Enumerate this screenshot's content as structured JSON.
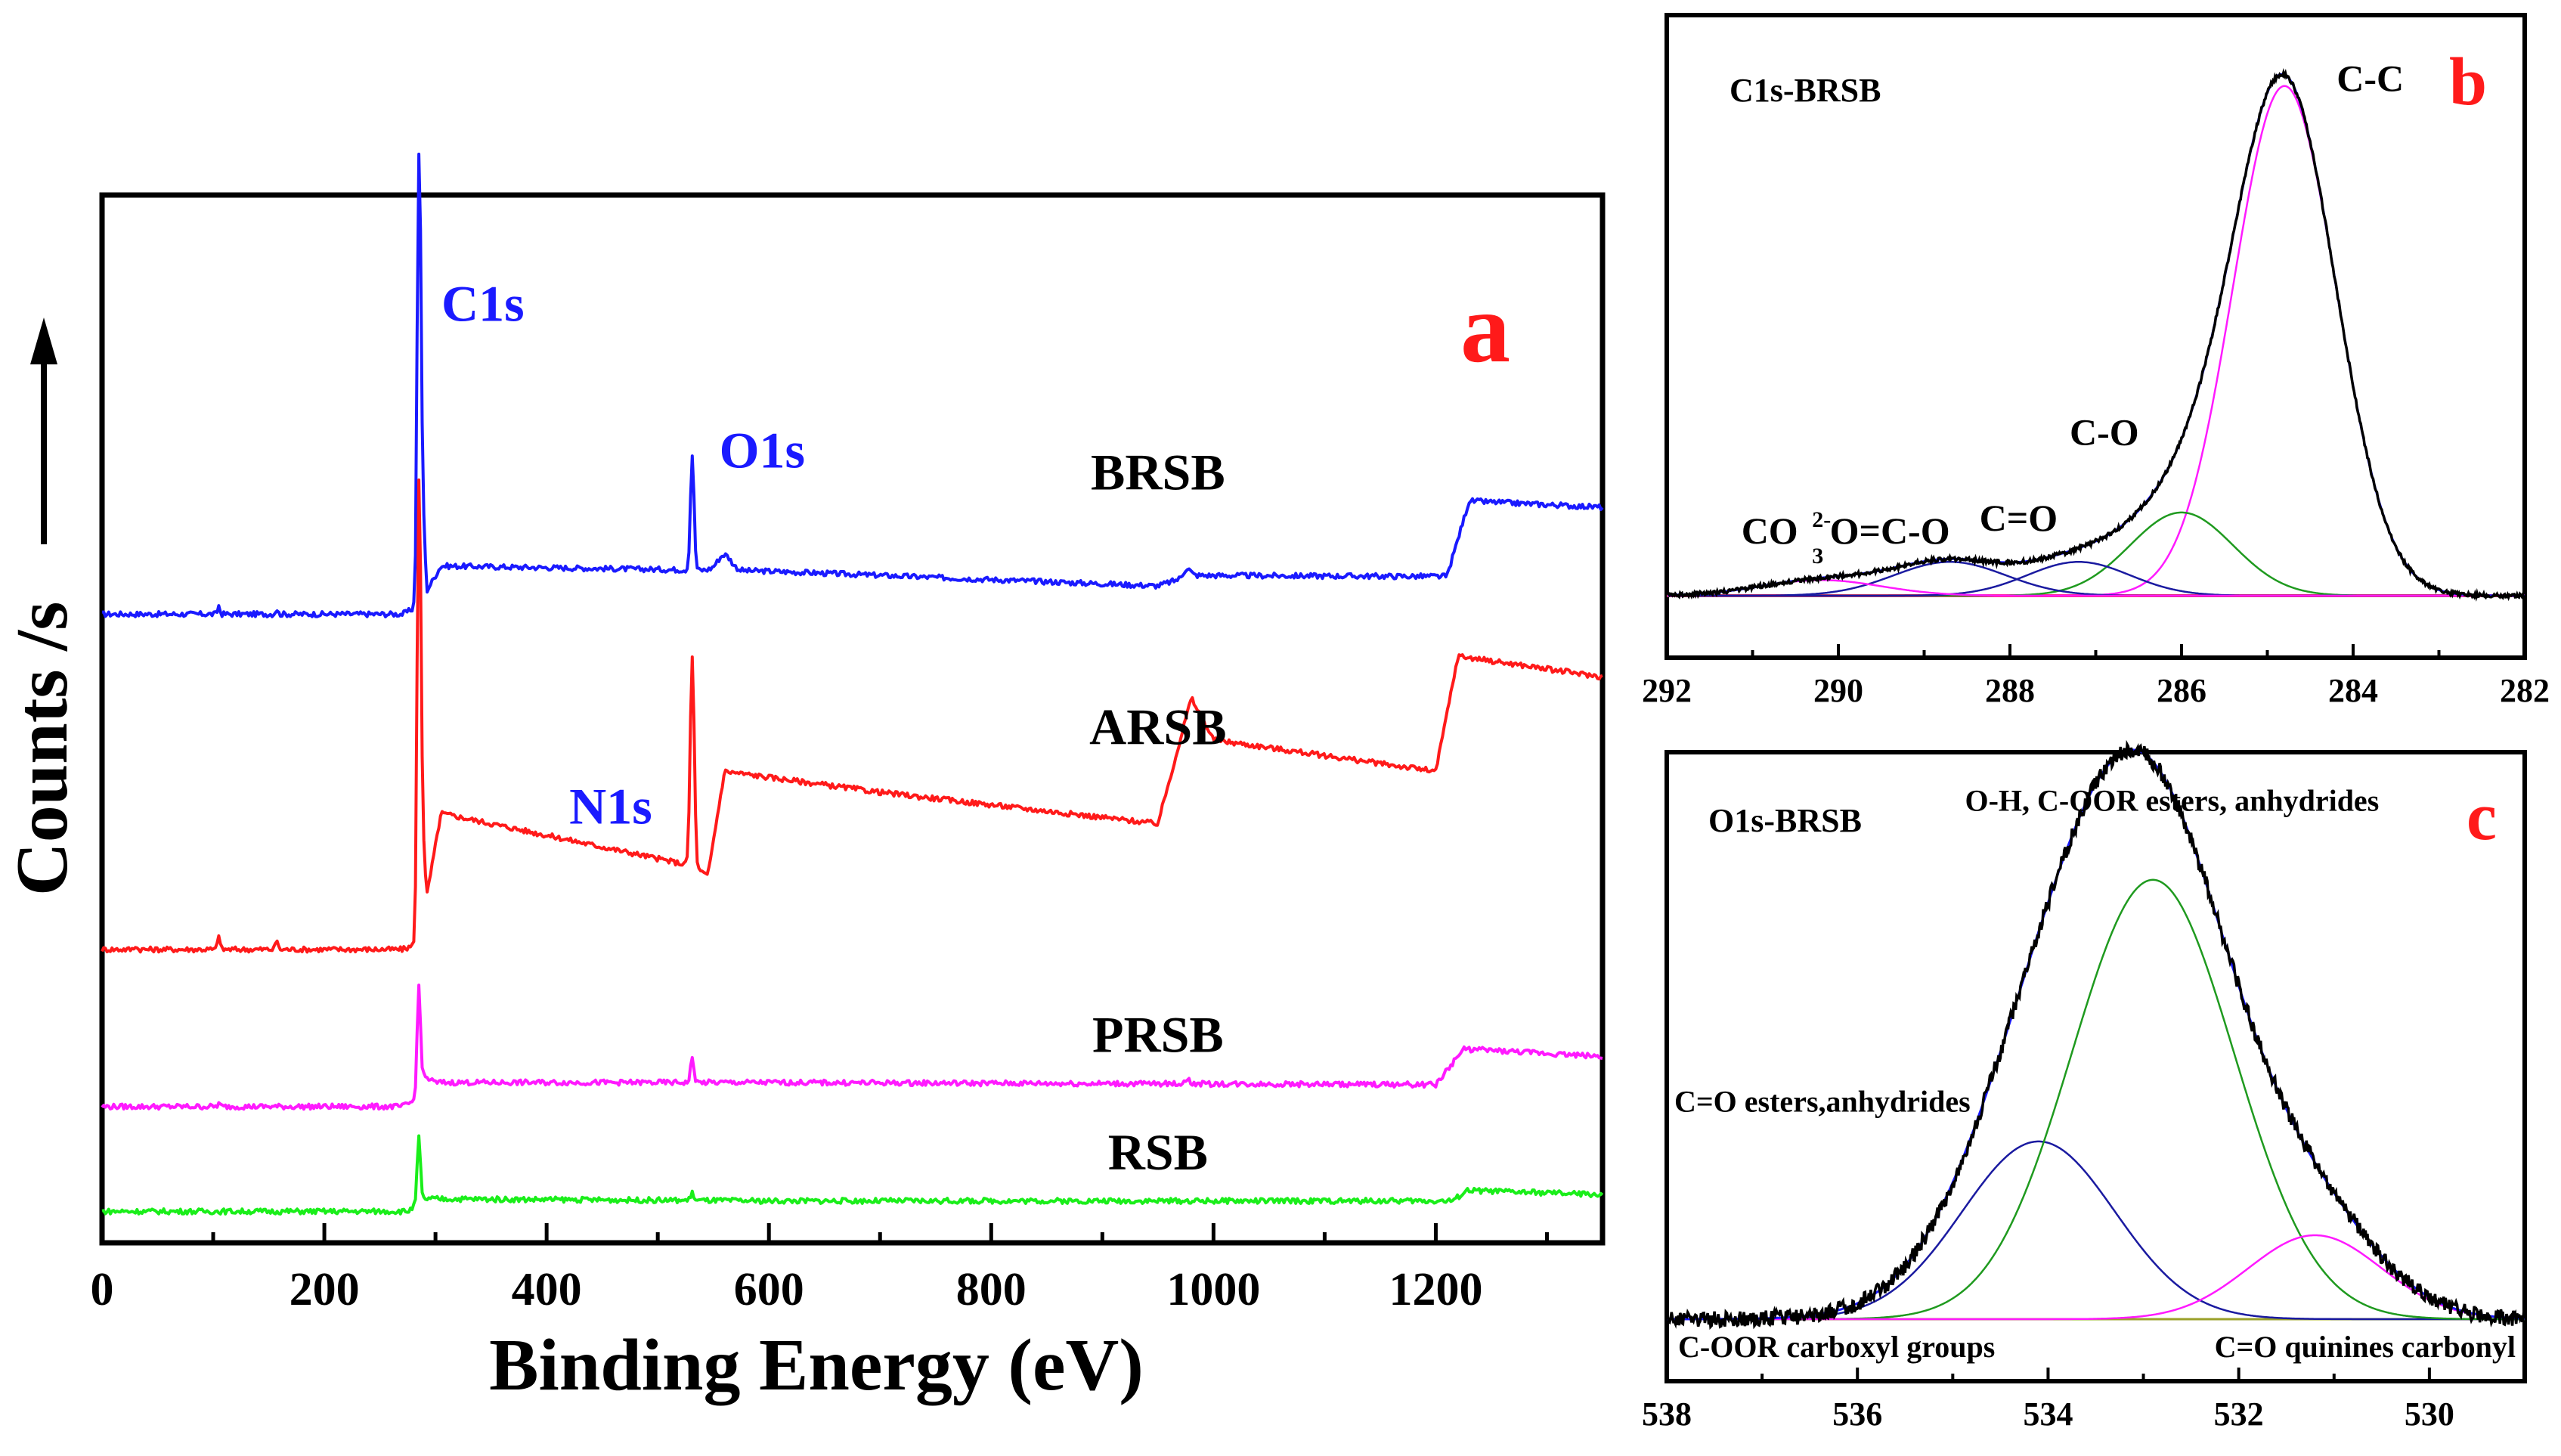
{
  "colors": {
    "blue": "#1a1aff",
    "red": "#ff1a1a",
    "magenta": "#ff1aff",
    "green": "#1aee1a",
    "darkgreen": "#1f9a1f",
    "navy": "#1a1aa0",
    "black": "#000000",
    "pinkline": "#ff3355"
  },
  "chart_data": [
    {
      "type": "line",
      "panel": "a",
      "panel_label": "a",
      "xlabel": "Binding Energy (eV)",
      "ylabel": "Counts /s",
      "xlim": [
        0,
        1350
      ],
      "ylim": [
        0,
        100
      ],
      "xticks": [
        0,
        200,
        400,
        600,
        800,
        1000,
        1200
      ],
      "tick_labels": [
        "0",
        "200",
        "400",
        "600",
        "800",
        "1000",
        "1200"
      ],
      "peak_labels": [
        {
          "text": "C1s",
          "x": 285,
          "y": 88
        },
        {
          "text": "O1s",
          "x": 535,
          "y": 74
        },
        {
          "text": "N1s",
          "x": 400,
          "y": 40
        }
      ],
      "series": [
        {
          "name": "BRSB",
          "color": "blue",
          "base": 60,
          "slope": 10,
          "trend": [
            [
              0,
              0
            ],
            [
              270,
              0
            ],
            [
              282,
              0.6
            ],
            [
              286,
              18.5
            ],
            [
              292,
              2.2
            ],
            [
              305,
              4.6
            ],
            [
              600,
              4.1
            ],
            [
              950,
              2.7
            ],
            [
              980,
              3.7
            ],
            [
              1210,
              3.6
            ],
            [
              1230,
              10.8
            ],
            [
              1350,
              10.2
            ]
          ],
          "peaks": [
            [
              285,
              30,
              1.6
            ],
            [
              531,
              11,
              1.6
            ],
            [
              560,
              1.5,
              6
            ],
            [
              976,
              0.8,
              3
            ],
            [
              105,
              0.8,
              1
            ],
            [
              157,
              0.5,
              1
            ]
          ]
        },
        {
          "name": "ARSB",
          "color": "red",
          "base": 28,
          "slope": 6,
          "trend": [
            [
              0,
              0
            ],
            [
              270,
              0
            ],
            [
              282,
              0.4
            ],
            [
              286,
              17
            ],
            [
              292,
              5
            ],
            [
              305,
              13
            ],
            [
              530,
              8
            ],
            [
              545,
              7
            ],
            [
              560,
              17
            ],
            [
              700,
              15
            ],
            [
              950,
              12
            ],
            [
              980,
              24
            ],
            [
              1000,
              20
            ],
            [
              1200,
              17
            ],
            [
              1220,
              28
            ],
            [
              1350,
              26
            ]
          ],
          "peaks": [
            [
              285,
              32,
              1.6
            ],
            [
              531,
              20,
              1.8
            ],
            [
              105,
              1.5,
              1
            ],
            [
              157,
              1,
              1
            ],
            [
              30,
              0.4,
              1
            ]
          ]
        },
        {
          "name": "PRSB",
          "color": "magenta",
          "base": 13,
          "slope": 3,
          "trend": [
            [
              0,
              0
            ],
            [
              270,
              0
            ],
            [
              280,
              0.5
            ],
            [
              288,
              3
            ],
            [
              300,
              2.3
            ],
            [
              600,
              2.3
            ],
            [
              1200,
              2.1
            ],
            [
              1225,
              5.5
            ],
            [
              1350,
              4.8
            ]
          ],
          "peaks": [
            [
              285,
              9.5,
              1.4
            ],
            [
              531,
              2.3,
              1.5
            ],
            [
              976,
              0.5,
              2
            ],
            [
              105,
              0.3,
              1
            ]
          ]
        },
        {
          "name": "RSB",
          "color": "green",
          "base": 3,
          "slope": 1,
          "trend": [
            [
              0,
              0
            ],
            [
              275,
              0
            ],
            [
              290,
              1.2
            ],
            [
              600,
              1
            ],
            [
              1215,
              1
            ],
            [
              1228,
              2
            ],
            [
              1350,
              1.6
            ]
          ],
          "peaks": [
            [
              285,
              6.3,
              1.4
            ],
            [
              531,
              0.7,
              1.5
            ]
          ]
        }
      ]
    },
    {
      "type": "line",
      "panel": "b",
      "panel_label": "b",
      "title": "C1s-BRSB",
      "xlim": [
        292,
        282
      ],
      "ylim": [
        0,
        100
      ],
      "xticks": [
        292,
        290,
        288,
        286,
        284,
        282
      ],
      "tick_labels": [
        "292",
        "290",
        "288",
        "286",
        "284",
        "282"
      ],
      "annotations": [
        {
          "text": "C-C",
          "x": 283.8,
          "y": 97
        },
        {
          "text": "C-O",
          "x": 286.9,
          "y": 29
        },
        {
          "text": "C=O",
          "x": 287.9,
          "y": 12.5
        },
        {
          "text": "O=C-O",
          "x": 289.4,
          "y": 10
        },
        {
          "text": "CO",
          "sub": "3",
          "sup": "2-",
          "x": 290.8,
          "y": 10
        }
      ],
      "components": [
        {
          "name": "C-C",
          "center": 284.8,
          "height": 98,
          "width": 0.6,
          "color": "magenta"
        },
        {
          "name": "C-O",
          "center": 286.0,
          "height": 16,
          "width": 0.6,
          "color": "darkgreen"
        },
        {
          "name": "C=O",
          "center": 287.2,
          "height": 6.5,
          "width": 0.6,
          "color": "navy"
        },
        {
          "name": "O=C-O",
          "center": 288.7,
          "height": 6.5,
          "width": 0.65,
          "color": "navy"
        },
        {
          "name": "CO3",
          "center": 290.2,
          "height": 3,
          "width": 0.7,
          "color": "magenta"
        }
      ]
    },
    {
      "type": "line",
      "panel": "c",
      "panel_label": "c",
      "title": "O1s-BRSB",
      "xlim": [
        538,
        529
      ],
      "ylim": [
        0,
        100
      ],
      "xticks": [
        538,
        536,
        534,
        532,
        530
      ],
      "tick_labels": [
        "538",
        "536",
        "534",
        "532",
        "530"
      ],
      "annotations": [
        {
          "text": "O-H, C-OOR esters, anhydrides",
          "x": 532.7,
          "y": 103
        },
        {
          "text": "C=O esters,anhydrides",
          "x": 536.5,
          "y": 42
        },
        {
          "text": "C-OOR carboxyl groups",
          "x": 536.5,
          "y": -6
        },
        {
          "text": "C=O quinines carbonyl",
          "x": 530.5,
          "y": -6
        }
      ],
      "components": [
        {
          "name": "C=O esters,anhydrides",
          "center": 534.1,
          "height": 36,
          "width": 0.8,
          "color": "navy"
        },
        {
          "name": "O-H, C-OOR esters, anhydrides",
          "center": 532.9,
          "height": 89,
          "width": 0.85,
          "color": "darkgreen"
        },
        {
          "name": "C=O quinines carbonyl",
          "center": 531.2,
          "height": 17,
          "width": 0.7,
          "color": "magenta"
        }
      ]
    }
  ]
}
